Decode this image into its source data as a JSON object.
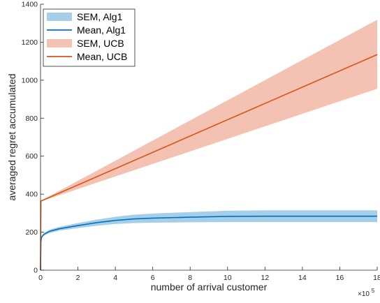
{
  "chart_data": {
    "type": "line",
    "title": "",
    "xlabel": "number of arrival customer",
    "ylabel": "averaged regret accumulated",
    "xlim": [
      0,
      1800000
    ],
    "ylim": [
      0,
      1400
    ],
    "x_exponent_label": "×10",
    "x_exponent_power": "5",
    "xticks": [
      0,
      200000,
      400000,
      600000,
      800000,
      1000000,
      1200000,
      1400000,
      1600000,
      1800000
    ],
    "xtick_labels": [
      "0",
      "2",
      "4",
      "6",
      "8",
      "10",
      "12",
      "14",
      "16",
      "18"
    ],
    "yticks": [
      0,
      200,
      400,
      600,
      800,
      1000,
      1200,
      1400
    ],
    "ytick_labels": [
      "0",
      "200",
      "400",
      "600",
      "800",
      "1000",
      "1200",
      "1400"
    ],
    "grid": false,
    "legend_placement": "top-left",
    "legend": [
      "SEM, Alg1",
      "Mean, Alg1",
      "SEM, UCB",
      "Mean, UCB"
    ],
    "series": [
      {
        "name": "Mean, Alg1",
        "kind": "line",
        "color": "#0072BD",
        "x": [
          0,
          2000,
          5000,
          10000,
          20000,
          50000,
          100000,
          200000,
          300000,
          400000,
          500000,
          600000,
          800000,
          1000000,
          1200000,
          1400000,
          1600000,
          1800000
        ],
        "y": [
          0,
          150,
          170,
          180,
          190,
          205,
          218,
          235,
          250,
          262,
          270,
          274,
          279,
          283,
          284,
          284,
          284,
          284
        ]
      },
      {
        "name": "SEM, Alg1",
        "kind": "band",
        "color": "#A6CEE8",
        "x": [
          0,
          2000,
          5000,
          10000,
          20000,
          50000,
          100000,
          200000,
          300000,
          400000,
          500000,
          600000,
          800000,
          1000000,
          1200000,
          1400000,
          1600000,
          1800000
        ],
        "lower": [
          0,
          145,
          165,
          174,
          183,
          196,
          208,
          222,
          234,
          243,
          248,
          250,
          252,
          253,
          253,
          253,
          253,
          253
        ],
        "upper": [
          0,
          155,
          175,
          186,
          197,
          214,
          228,
          248,
          266,
          281,
          292,
          298,
          306,
          313,
          315,
          315,
          315,
          315
        ]
      },
      {
        "name": "Mean, UCB",
        "kind": "line",
        "color": "#D95319",
        "x": [
          0,
          2000,
          5000,
          1800000
        ],
        "y": [
          0,
          363,
          365,
          1135
        ]
      },
      {
        "name": "SEM, UCB",
        "kind": "band",
        "color": "#F4C2B2",
        "x": [
          0,
          2000,
          5000,
          1800000
        ],
        "lower": [
          0,
          361,
          363,
          955
        ],
        "upper": [
          0,
          365,
          367,
          1318
        ]
      }
    ]
  }
}
